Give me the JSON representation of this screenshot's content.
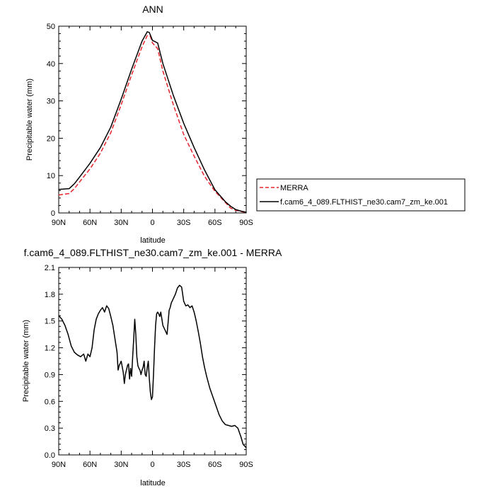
{
  "chart_data": [
    {
      "type": "line",
      "title": "ANN",
      "xlabel": "latitude",
      "ylabel": "Precipitable water (mm)",
      "x_ticks": [
        "90N",
        "60N",
        "30N",
        "0",
        "30S",
        "60S",
        "90S"
      ],
      "xlim": [
        90,
        -90
      ],
      "y_ticks": [
        "0",
        "10",
        "20",
        "30",
        "40",
        "50"
      ],
      "ylim": [
        0,
        50
      ],
      "grid": false,
      "legend": "outside-right",
      "series": [
        {
          "name": "MERRA",
          "color": "#e8242b",
          "dash": "dashed",
          "x": [
            90,
            80,
            75,
            70,
            60,
            50,
            40,
            30,
            20,
            10,
            5,
            2,
            0,
            -5,
            -10,
            -20,
            -30,
            -40,
            -50,
            -60,
            -70,
            -75,
            -80,
            -85,
            -90
          ],
          "y": [
            4.8,
            5.2,
            6.5,
            8.3,
            11.8,
            16.0,
            21.5,
            29.0,
            37.0,
            44.5,
            47.5,
            47.3,
            45.5,
            44.0,
            38.0,
            29.0,
            21.0,
            15.2,
            9.8,
            5.8,
            2.8,
            1.3,
            0.7,
            0.4,
            0.1
          ]
        },
        {
          "name": "f.cam6_4_089.FLTHIST_ne30.cam7_zm_ke.001",
          "color": "#000000",
          "dash": "solid",
          "x": [
            90,
            80,
            75,
            70,
            60,
            50,
            40,
            30,
            20,
            10,
            5,
            3,
            0,
            -5,
            -10,
            -20,
            -30,
            -40,
            -50,
            -60,
            -70,
            -75,
            -80,
            -85,
            -90
          ],
          "y": [
            6.3,
            6.5,
            7.8,
            9.6,
            13.3,
            17.5,
            23.0,
            30.5,
            38.5,
            46.0,
            48.5,
            48.3,
            46.2,
            45.5,
            40.0,
            31.5,
            24.0,
            17.5,
            11.5,
            6.2,
            3.0,
            1.8,
            0.9,
            0.5,
            0.2
          ]
        }
      ]
    },
    {
      "type": "line",
      "title": "f.cam6_4_089.FLTHIST_ne30.cam7_zm_ke.001 - MERRA",
      "xlabel": "latitude",
      "ylabel": "Precipitable water (mm)",
      "x_ticks": [
        "90N",
        "60N",
        "30N",
        "0",
        "30S",
        "60S",
        "90S"
      ],
      "xlim": [
        90,
        -90
      ],
      "y_ticks": [
        "0.0",
        "0.3",
        "0.6",
        "0.9",
        "1.2",
        "1.5",
        "1.8",
        "2.1"
      ],
      "ylim": [
        0,
        2.1
      ],
      "grid": false,
      "series": [
        {
          "color": "#000000",
          "dash": "solid",
          "x": [
            90,
            87,
            84,
            81,
            78,
            75,
            72,
            69,
            66,
            64,
            62,
            60,
            58,
            56,
            54,
            52,
            50,
            48,
            46,
            44,
            42,
            40,
            38,
            36,
            34,
            33,
            32,
            30,
            28,
            27,
            26,
            25,
            24,
            23,
            22,
            21,
            20,
            19,
            18,
            17,
            16,
            15,
            14,
            13,
            12,
            11,
            10,
            9,
            8,
            7,
            6,
            5,
            4,
            3,
            2,
            1,
            0,
            -1,
            -2,
            -3,
            -4,
            -5,
            -6,
            -7,
            -8,
            -10,
            -12,
            -14,
            -15,
            -16,
            -17,
            -18,
            -20,
            -22,
            -24,
            -26,
            -28,
            -30,
            -32,
            -34,
            -36,
            -38,
            -40,
            -42,
            -44,
            -46,
            -48,
            -50,
            -52,
            -55,
            -58,
            -61,
            -64,
            -67,
            -70,
            -73,
            -76,
            -79,
            -82,
            -85,
            -87,
            -90
          ],
          "y": [
            1.56,
            1.52,
            1.45,
            1.35,
            1.22,
            1.15,
            1.12,
            1.1,
            1.13,
            1.05,
            1.13,
            1.1,
            1.2,
            1.4,
            1.52,
            1.58,
            1.62,
            1.65,
            1.6,
            1.67,
            1.64,
            1.55,
            1.45,
            1.3,
            1.15,
            0.95,
            1.0,
            1.05,
            0.92,
            0.8,
            0.9,
            0.95,
            1.0,
            1.02,
            0.85,
            0.97,
            0.88,
            1.1,
            1.3,
            1.52,
            1.35,
            1.1,
            1.0,
            0.97,
            0.95,
            0.9,
            0.95,
            0.98,
            1.05,
            0.9,
            0.88,
            0.98,
            1.05,
            0.85,
            0.7,
            0.62,
            0.65,
            0.9,
            1.2,
            1.45,
            1.58,
            1.6,
            1.58,
            1.55,
            1.6,
            1.45,
            1.4,
            1.35,
            1.48,
            1.62,
            1.65,
            1.7,
            1.75,
            1.8,
            1.87,
            1.9,
            1.88,
            1.72,
            1.67,
            1.68,
            1.65,
            1.67,
            1.6,
            1.5,
            1.38,
            1.25,
            1.1,
            0.98,
            0.88,
            0.75,
            0.65,
            0.55,
            0.45,
            0.38,
            0.34,
            0.33,
            0.32,
            0.33,
            0.3,
            0.2,
            0.12,
            0.08
          ]
        }
      ]
    }
  ]
}
